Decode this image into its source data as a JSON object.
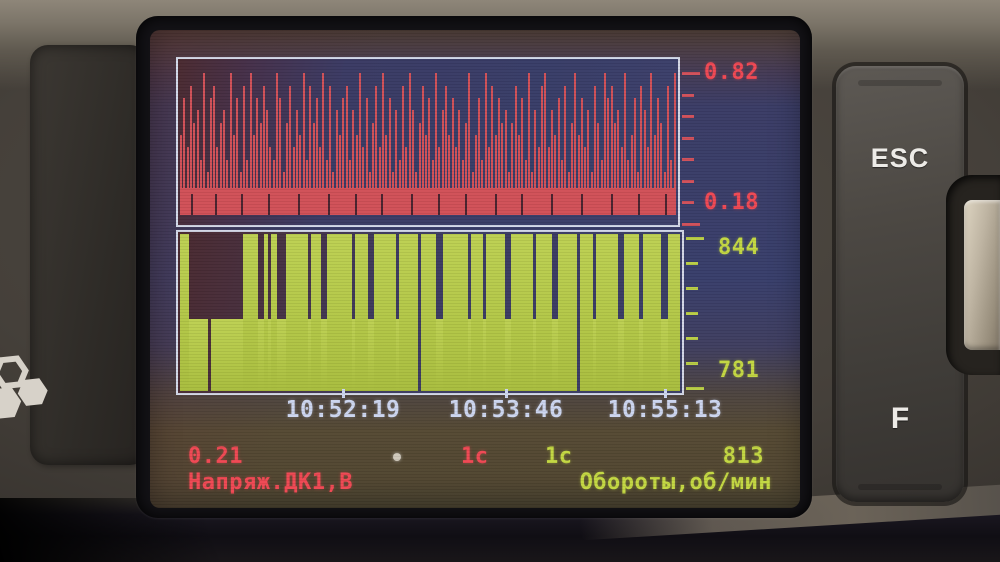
{
  "screen": {
    "time_labels": [
      "10:52:19",
      "10:53:46",
      "10:55:13"
    ]
  },
  "buttons": {
    "esc": "ESC",
    "f": "F"
  },
  "colors": {
    "voltage_red": "#d0505a",
    "rpm_green": "#b9cd45",
    "lcd_blue_bg": "#3a3d66",
    "time_text": "#ccd5ef"
  },
  "chart_data": [
    {
      "type": "bar",
      "title": "Напряж.ДК1,В",
      "unit": "В",
      "y_top_label": 0.82,
      "y_bottom_label": 0.18,
      "current": 0.21,
      "sweep": "1с",
      "x_ticks": [
        "10:52:19",
        "10:53:46",
        "10:55:13"
      ],
      "right_tick_count": 8,
      "bar_heights_digits": "473856291783562947182947586329715836492857392816478264937158394716283961584729368473625914729384756158472916389364728159473618529785639247186394751829",
      "notch_positions": [
        4,
        11,
        19,
        27,
        36,
        45,
        53,
        61,
        70,
        78,
        86,
        95,
        103,
        112,
        121,
        130,
        138,
        146
      ]
    },
    {
      "type": "bar",
      "title": "Обороты,об/мин",
      "unit": "об/мин",
      "y_top_label": 844,
      "y_bottom_label": 781,
      "current": 813,
      "sweep": "1с",
      "right_tick_count": 7,
      "low_level_frac": 0.46,
      "columns": "HHHLLLLLLDLLLLLLLLLLHHHHHLLHLHHLLLHHHHHHHLHHHLLHHHHHHHHLHHHHLLHHHHHHHLHHHHHHDHHHHHLLHHHHHHHHLHHHHLHHHHHHLLHHHHHHHLHHHHHLLHHHHHHDHHHHLHHHHHHHLLHHHHHLHHHHHHLLHHHH"
    }
  ]
}
